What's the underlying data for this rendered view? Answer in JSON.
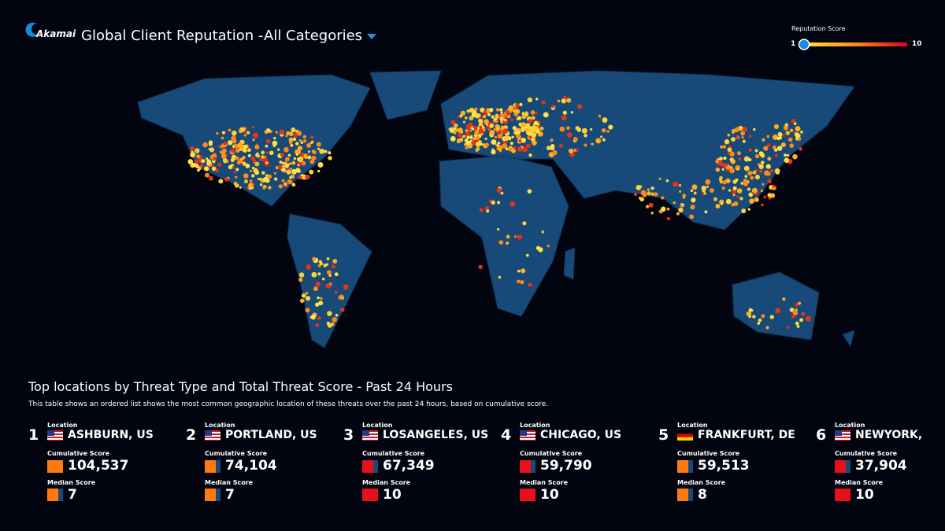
{
  "header": {
    "logo": "Akamai",
    "title": "Global Client Reputation -",
    "dropdown": "All Categories"
  },
  "legend": {
    "title": "Reputation Score",
    "min": "1",
    "max": "10"
  },
  "section": {
    "title": "Top locations by Threat Type and Total Threat Score - Past 24 Hours",
    "description": "This table shows an ordered list shows the most common geographic location of these threats over the past 24 hours, based on cumulative score."
  },
  "locations": [
    {
      "rank": 1,
      "location_label": "Location",
      "name": "ASHBURN, US",
      "cumulative_label": "Cumulative Score",
      "cumulative": "104,537",
      "median_label": "Median Score",
      "median": 7
    },
    {
      "rank": 2,
      "location_label": "Location",
      "name": "PORTLAND, US",
      "cumulative_label": "Cumulative Score",
      "cumulative": "74,104",
      "median_label": "Median Score",
      "median": 7
    },
    {
      "rank": 3,
      "location_label": "Location",
      "name": "LOSANGELES, US",
      "cumulative_label": "Cumulative Score",
      "cumulative": "67,349",
      "median_label": "Median Score",
      "median": 10
    },
    {
      "rank": 4,
      "location_label": "Location",
      "name": "CHICAGO, US",
      "cumulative_label": "Cumulative Score",
      "cumulative": "59,790",
      "median_label": "Median Score",
      "median": 10
    },
    {
      "rank": 5,
      "location_label": "Location",
      "name": "FRANKFURT, DE",
      "cumulative_label": "Cumulative Score",
      "cumulative": "59,513",
      "median_label": "Median Score",
      "median": 8
    },
    {
      "rank": 6,
      "location_label": "Location",
      "name": "NEWYORK,",
      "cumulative_label": "Cumulative Score",
      "cumulative": "37,904",
      "median_label": "Median Score",
      "median": 10
    }
  ]
}
